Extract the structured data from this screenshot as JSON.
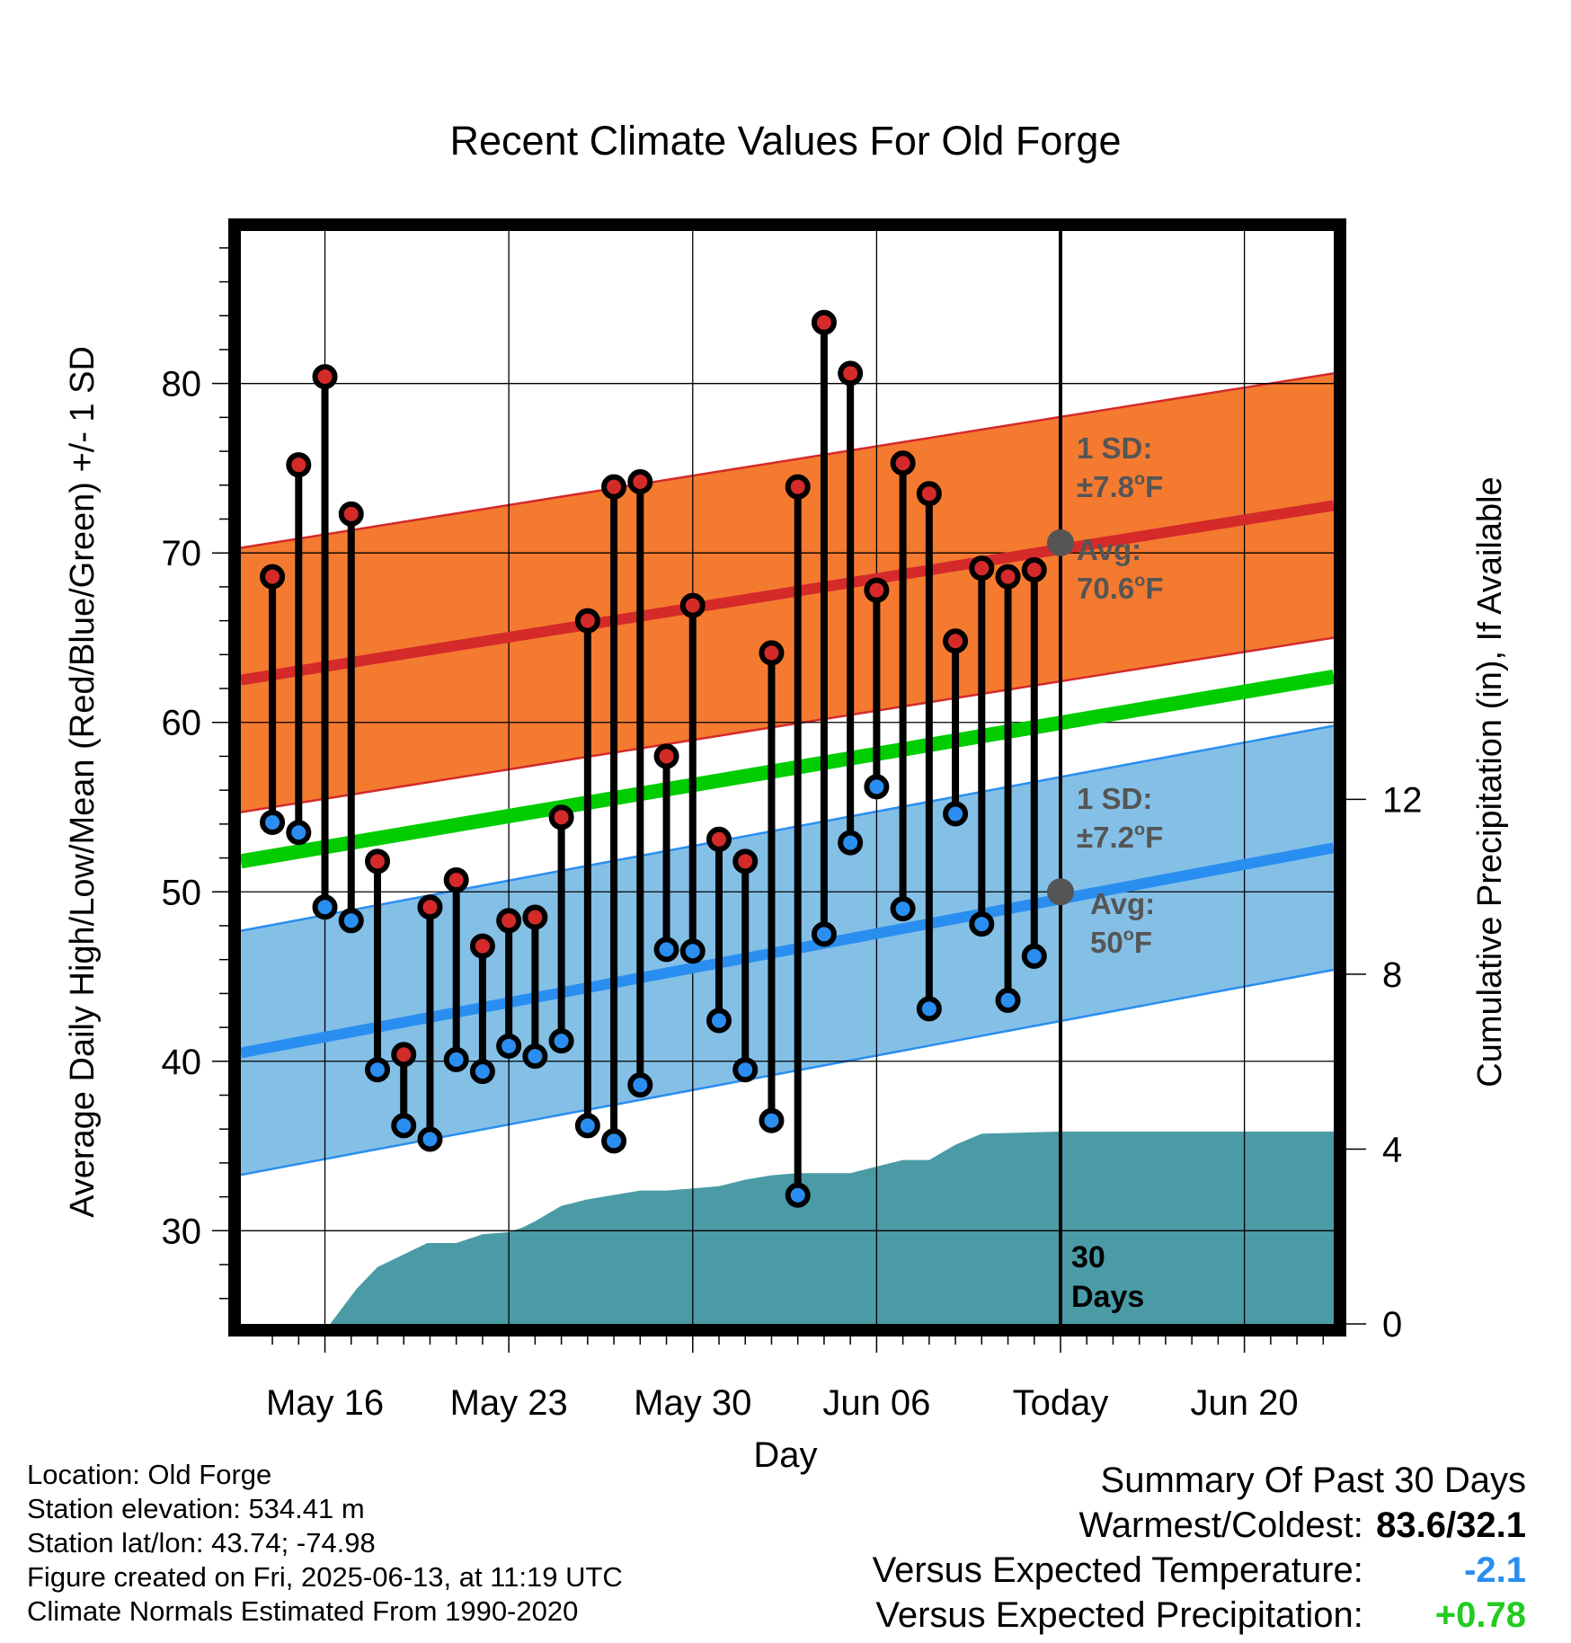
{
  "chart_data": {
    "type": "line",
    "title": "Recent Climate Values For Old Forge",
    "xlabel": "Day",
    "ylabel": "Average Daily High/Low/Mean (Red/Blue/Green) +/- 1 SD",
    "ylabel_right": "Cumulative Precipitation (in), If Available",
    "ylim": [
      24.5,
      89
    ],
    "ylim_right": [
      0,
      25
    ],
    "yticks": [
      "30",
      "40",
      "50",
      "60",
      "70",
      "80"
    ],
    "yticks_right": [
      "0",
      "4",
      "8",
      "12"
    ],
    "xlim": [
      -3.2,
      38.4
    ],
    "x_tick_positions": [
      0,
      7,
      14,
      21,
      28,
      35
    ],
    "xtick_labels": [
      "May 16",
      "May 23",
      "May 30",
      "Jun 06",
      "Today",
      "Jun 20"
    ],
    "grid": true,
    "days_offset_from_may16": [
      -2,
      -1,
      0,
      1,
      2,
      3,
      4,
      5,
      6,
      7,
      8,
      9,
      10,
      11,
      12,
      13,
      14,
      15,
      16,
      17,
      18,
      19,
      20,
      21,
      22,
      23,
      24,
      25,
      26,
      27
    ],
    "series": [
      {
        "name": "High",
        "color": "#d42a2a",
        "values": [
          68.6,
          75.2,
          80.4,
          72.3,
          51.8,
          40.4,
          49.1,
          50.7,
          46.8,
          48.3,
          48.5,
          54.4,
          66.0,
          73.9,
          74.2,
          58.0,
          66.9,
          53.1,
          51.8,
          64.1,
          73.9,
          83.6,
          80.6,
          67.8,
          75.3,
          73.5,
          64.8,
          69.1,
          68.6,
          69.0
        ]
      },
      {
        "name": "Low",
        "color": "#2a8ef0",
        "values": [
          54.1,
          53.5,
          49.1,
          48.3,
          39.5,
          36.2,
          35.4,
          40.1,
          39.4,
          40.9,
          40.3,
          41.2,
          36.2,
          35.3,
          38.6,
          46.6,
          46.5,
          42.4,
          39.5,
          36.5,
          32.1,
          47.5,
          52.9,
          56.2,
          49.0,
          43.1,
          54.6,
          48.1,
          43.6,
          46.2
        ]
      }
    ],
    "normal_high": {
      "start": 62.5,
      "end": 72.8,
      "sd": 7.8
    },
    "normal_low": {
      "start": 40.5,
      "end": 52.6,
      "sd": 7.2
    },
    "normal_mean": {
      "start": 51.8,
      "end": 62.7
    },
    "precip_cumulative": {
      "x": [
        -3.2,
        0.2,
        1.2,
        2.0,
        3.9,
        4.0,
        5.0,
        6.0,
        7.0,
        7.5,
        8.0,
        9.0,
        10.0,
        11.0,
        12.0,
        13.0,
        14.0,
        15.0,
        16.0,
        17.0,
        18.0,
        20.0,
        21.0,
        22.0,
        23.0,
        24.0,
        25.0,
        28.0,
        38.4
      ],
      "y": [
        0,
        0,
        0.8,
        1.3,
        1.85,
        1.85,
        1.85,
        2.05,
        2.1,
        2.2,
        2.35,
        2.7,
        2.85,
        2.95,
        3.05,
        3.05,
        3.1,
        3.15,
        3.3,
        3.4,
        3.45,
        3.45,
        3.6,
        3.75,
        3.75,
        4.1,
        4.35,
        4.4,
        4.4
      ]
    },
    "today_annotation": {
      "avg_high_label": "Avg:",
      "avg_high_value": "70.6°F",
      "sd_high_label": "1 SD:",
      "sd_high_value": "±7.8°F",
      "avg_low_label": "Avg:",
      "avg_low_value": "50°F",
      "sd_low_label": "1 SD:",
      "sd_low_value": "±7.2°F",
      "avg_high_point": 70.6,
      "avg_low_point": 50.0,
      "days_line1": "30",
      "days_line2": "Days"
    },
    "colors": {
      "high_band": "#f47a30",
      "high_line": "#d42a2a",
      "low_band": "#84c0e6",
      "low_line": "#2a8ef0",
      "mean_line": "#00cc00",
      "precip": "#4a9ba6",
      "annotation": "#555555"
    }
  },
  "info": {
    "location": "Location: Old Forge",
    "elevation": "Station elevation: 534.41 m",
    "latlon": "Station lat/lon: 43.74; -74.98",
    "created": "Figure created on Fri, 2025-06-13, at 11:19 UTC",
    "normals": "Climate Normals Estimated From 1990-2020"
  },
  "summary": {
    "title": "Summary Of Past 30 Days",
    "warm_cold_label": "Warmest/Coldest:",
    "warm_cold_value": "83.6/32.1",
    "temp_label": "Versus Expected Temperature:",
    "temp_value": "-2.1",
    "temp_color": "#2a8ef0",
    "precip_label": "Versus Expected Precipitation:",
    "precip_value": "+0.78",
    "precip_color": "#22cc22"
  }
}
